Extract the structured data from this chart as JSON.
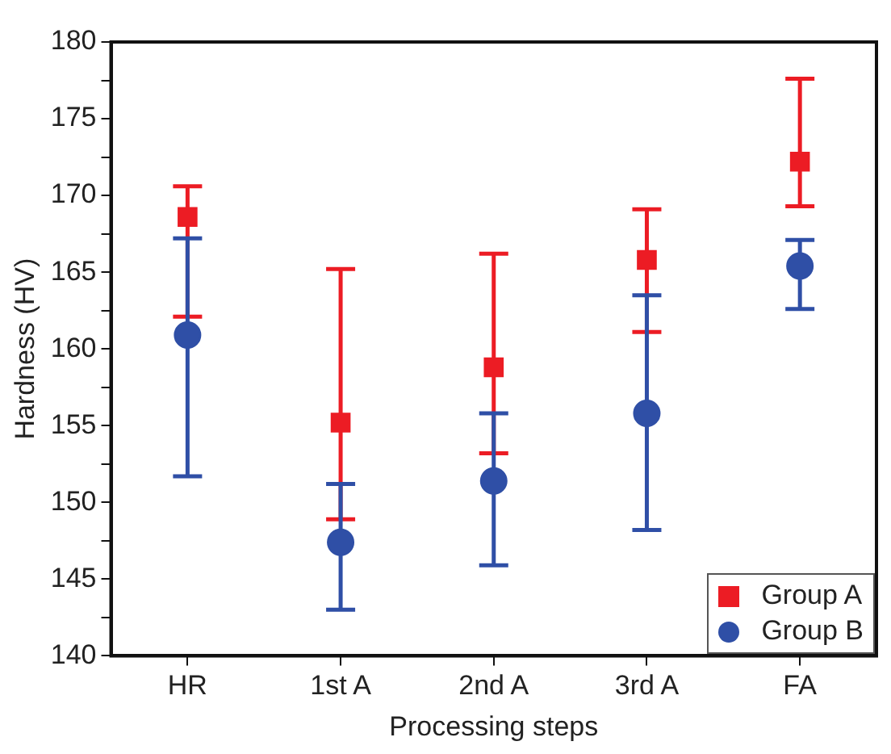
{
  "chart_data": {
    "type": "scatter",
    "xlabel": "Processing steps",
    "ylabel": "Hardness (HV)",
    "categories": [
      "HR",
      "1st A",
      "2nd A",
      "3rd A",
      "FA"
    ],
    "ylim": [
      140,
      180
    ],
    "yticks": [
      140,
      {
        "value": 142.5,
        "label": null
      },
      145,
      {
        "value": 147.5,
        "label": null
      },
      150,
      {
        "value": 152.5,
        "label": null
      },
      155,
      {
        "value": 157.5,
        "label": null
      },
      160,
      {
        "value": 162.5,
        "label": null
      },
      165,
      {
        "value": 167.5,
        "label": null
      },
      170,
      {
        "value": 172.5,
        "label": null
      },
      175,
      {
        "value": 177.5,
        "label": null
      },
      180
    ],
    "legend": "bottom right",
    "series": [
      {
        "name": "Group A",
        "color": "#ec1c24",
        "marker": "square",
        "values": [
          168.6,
          155.2,
          158.8,
          165.8,
          172.2
        ],
        "errors": [
          [
            162.1,
            170.6
          ],
          [
            148.9,
            165.2
          ],
          [
            153.2,
            166.2
          ],
          [
            161.1,
            169.1
          ],
          [
            169.3,
            177.6
          ]
        ]
      },
      {
        "name": "Group B",
        "color": "#2f4fa6",
        "marker": "circle",
        "values": [
          160.9,
          147.4,
          151.4,
          155.8,
          165.4
        ],
        "errors": [
          [
            151.7,
            167.2
          ],
          [
            143.0,
            151.2
          ],
          [
            145.9,
            155.8
          ],
          [
            148.2,
            163.5
          ],
          [
            162.6,
            167.1
          ]
        ]
      }
    ]
  }
}
